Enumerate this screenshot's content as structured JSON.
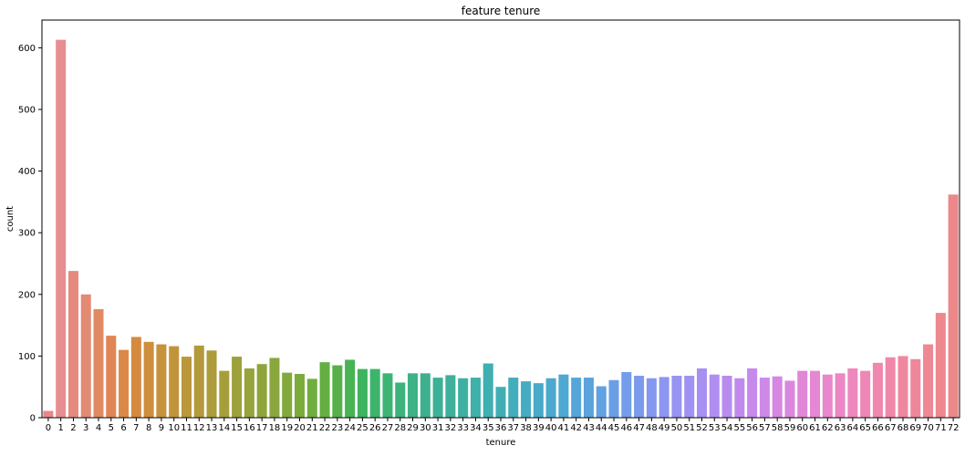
{
  "chart_data": {
    "type": "bar",
    "title": "feature tenure",
    "xlabel": "tenure",
    "ylabel": "count",
    "ylim": [
      0,
      645
    ],
    "yticks": [
      0,
      100,
      200,
      300,
      400,
      500,
      600
    ],
    "grid": false,
    "categories": [
      "0",
      "1",
      "2",
      "3",
      "4",
      "5",
      "6",
      "7",
      "8",
      "9",
      "10",
      "11",
      "12",
      "13",
      "14",
      "15",
      "16",
      "17",
      "18",
      "19",
      "20",
      "21",
      "22",
      "23",
      "24",
      "25",
      "26",
      "27",
      "28",
      "29",
      "30",
      "31",
      "32",
      "33",
      "34",
      "35",
      "36",
      "37",
      "38",
      "39",
      "40",
      "41",
      "42",
      "43",
      "44",
      "45",
      "46",
      "47",
      "48",
      "49",
      "50",
      "51",
      "52",
      "53",
      "54",
      "55",
      "56",
      "57",
      "58",
      "59",
      "60",
      "61",
      "62",
      "63",
      "64",
      "65",
      "66",
      "67",
      "68",
      "69",
      "70",
      "71",
      "72"
    ],
    "values": [
      11,
      613,
      238,
      200,
      176,
      133,
      110,
      131,
      123,
      119,
      116,
      99,
      117,
      109,
      76,
      99,
      80,
      87,
      97,
      73,
      71,
      63,
      90,
      85,
      94,
      79,
      79,
      72,
      57,
      72,
      72,
      65,
      69,
      64,
      65,
      88,
      50,
      65,
      59,
      56,
      64,
      70,
      65,
      65,
      51,
      61,
      74,
      68,
      64,
      66,
      68,
      68,
      80,
      70,
      68,
      64,
      80,
      65,
      67,
      60,
      76,
      76,
      70,
      72,
      80,
      76,
      89,
      98,
      100,
      95,
      119,
      170,
      362
    ],
    "colors": [
      "#e8868b",
      "#e68e92",
      "#e48a7e",
      "#e38a73",
      "#e08a63",
      "#df8557",
      "#dc8848",
      "#d58a3f",
      "#cf8e3d",
      "#c8913c",
      "#c1943b",
      "#ba973b",
      "#b39a3b",
      "#ac9c3b",
      "#a59e3b",
      "#9ea13b",
      "#97a33b",
      "#90a43c",
      "#89a73c",
      "#82a93c",
      "#7aab3c",
      "#70ad3f",
      "#64af44",
      "#56b14a",
      "#47b353",
      "#3db45f",
      "#3cb46a",
      "#3cb474",
      "#3cb27d",
      "#3db286",
      "#3db18e",
      "#3db195",
      "#3eb09c",
      "#3eb0a3",
      "#3fb0aa",
      "#3fafb0",
      "#41aeb6",
      "#43adbc",
      "#45acc2",
      "#48aac8",
      "#4ba9ce",
      "#4fa7d3",
      "#55a5d8",
      "#5ba3dd",
      "#62a1e2",
      "#6a9fe6",
      "#739dea",
      "#7c9aed",
      "#8598ef",
      "#8e96f1",
      "#9794f2",
      "#a092f2",
      "#a890f2",
      "#b08ef1",
      "#b88cef",
      "#c08aed",
      "#c789eb",
      "#ce88e7",
      "#d587e3",
      "#db87de",
      "#e087d8",
      "#e587d2",
      "#e887cb",
      "#eb87c4",
      "#ed87bd",
      "#ee87b6",
      "#ef87af",
      "#ef87a8",
      "#ef87a1",
      "#ee879a",
      "#ee8894",
      "#ed888e",
      "#ec8889"
    ]
  }
}
